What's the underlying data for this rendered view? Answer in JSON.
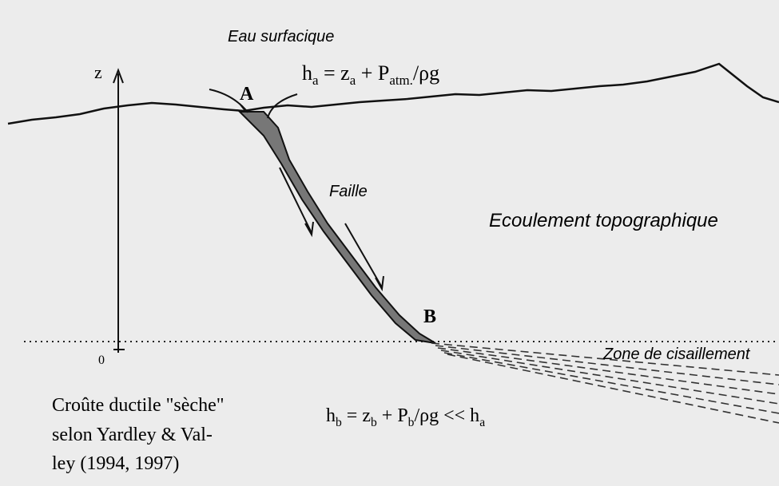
{
  "labels": {
    "surface_water": "Eau surfacique",
    "z_axis": "z",
    "zero": "0",
    "point_a": "A",
    "point_b": "B",
    "fault": "Faille",
    "topographic_flow": "Ecoulement topographique",
    "shear_zone": "Zone de cisaillement",
    "crust_note": [
      "Croûte ductile \"sèche\"",
      "selon Yardley & Val-",
      "ley (1994, 1997)"
    ]
  },
  "formulas": {
    "head_a": [
      "h",
      "a",
      " = z",
      "a",
      " + P",
      "atm.",
      "/ρg"
    ],
    "head_b": [
      "h",
      "b",
      " = z",
      "b",
      " + P",
      "b",
      "/ρg << h",
      "a"
    ]
  }
}
